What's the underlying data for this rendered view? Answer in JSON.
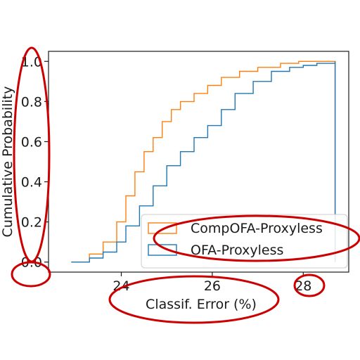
{
  "chart_data": {
    "type": "line",
    "subtype": "cumulative-step-histogram",
    "xlabel": "Classif. Error (%)",
    "ylabel": "Cumulative Probability",
    "xlim": [
      22.4,
      29.0
    ],
    "ylim": [
      -0.05,
      1.05
    ],
    "xticks": [
      24,
      26,
      28
    ],
    "yticks": [
      0.0,
      0.2,
      0.4,
      0.6,
      0.8,
      1.0
    ],
    "ytick_labels": [
      "0.0",
      "0.2",
      "0.4",
      "0.6",
      "0.8",
      "1.0"
    ],
    "grid": false,
    "legend": {
      "position": "lower-right",
      "style": "open-box"
    },
    "series": [
      {
        "name": "CompOFA-Proxyless",
        "color": "#ff7f0e",
        "x": [
          22.9,
          23.3,
          23.6,
          23.9,
          24.1,
          24.3,
          24.5,
          24.7,
          24.9,
          25.1,
          25.3,
          25.6,
          25.9,
          26.2,
          26.6,
          27.0,
          27.5,
          27.9,
          28.3,
          28.7
        ],
        "y": [
          0.0,
          0.04,
          0.1,
          0.2,
          0.33,
          0.45,
          0.55,
          0.62,
          0.7,
          0.76,
          0.8,
          0.84,
          0.88,
          0.92,
          0.95,
          0.97,
          0.99,
          1.0,
          1.0,
          1.0
        ]
      },
      {
        "name": "OFA-Proxyless",
        "color": "#1f77b4",
        "x": [
          22.9,
          23.3,
          23.6,
          23.9,
          24.1,
          24.4,
          24.7,
          25.0,
          25.3,
          25.6,
          25.9,
          26.2,
          26.5,
          26.9,
          27.3,
          27.7,
          28.0,
          28.3,
          28.7
        ],
        "y": [
          0.0,
          0.02,
          0.05,
          0.1,
          0.18,
          0.28,
          0.38,
          0.48,
          0.55,
          0.62,
          0.68,
          0.76,
          0.84,
          0.9,
          0.95,
          0.97,
          0.98,
          0.99,
          1.0
        ]
      }
    ]
  }
}
